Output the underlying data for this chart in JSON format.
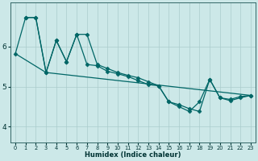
{
  "title": "",
  "xlabel": "Humidex (Indice chaleur)",
  "ylabel": "",
  "bg_color": "#cce8e8",
  "grid_color_major": "#aacccc",
  "grid_color_minor": "#bbdddd",
  "line_color": "#006666",
  "xlim": [
    -0.5,
    23.5
  ],
  "ylim": [
    3.6,
    7.1
  ],
  "yticks": [
    4,
    5,
    6
  ],
  "xticks": [
    0,
    1,
    2,
    3,
    4,
    5,
    6,
    7,
    8,
    9,
    10,
    11,
    12,
    13,
    14,
    15,
    16,
    17,
    18,
    19,
    20,
    21,
    22,
    23
  ],
  "lines": [
    {
      "x": [
        0,
        1,
        2,
        3,
        4,
        5,
        6,
        7,
        8,
        9,
        10,
        11,
        12,
        13,
        14,
        15,
        16,
        17,
        18,
        19,
        20,
        21,
        22,
        23
      ],
      "y": [
        5.82,
        6.72,
        6.72,
        5.35,
        6.15,
        5.62,
        6.3,
        5.55,
        5.52,
        5.38,
        5.32,
        5.25,
        5.15,
        5.05,
        5.02,
        4.62,
        4.5,
        4.38,
        4.62,
        5.18,
        4.72,
        4.68,
        4.75,
        4.78
      ]
    },
    {
      "x": [
        1,
        2,
        3,
        4,
        5,
        6,
        7,
        8,
        9,
        10,
        11,
        12,
        13,
        14,
        15,
        16,
        17,
        18,
        19,
        20,
        21,
        22,
        23
      ],
      "y": [
        6.72,
        6.72,
        5.35,
        6.15,
        5.62,
        6.3,
        6.3,
        5.55,
        5.45,
        5.35,
        5.28,
        5.22,
        5.12,
        5.02,
        4.62,
        4.55,
        4.45,
        4.38,
        5.18,
        4.72,
        4.65,
        4.72,
        4.78
      ]
    },
    {
      "x": [
        0,
        3,
        23
      ],
      "y": [
        5.82,
        5.35,
        4.78
      ]
    }
  ],
  "marker": "D",
  "markersize": 2.5,
  "linewidth": 0.9
}
